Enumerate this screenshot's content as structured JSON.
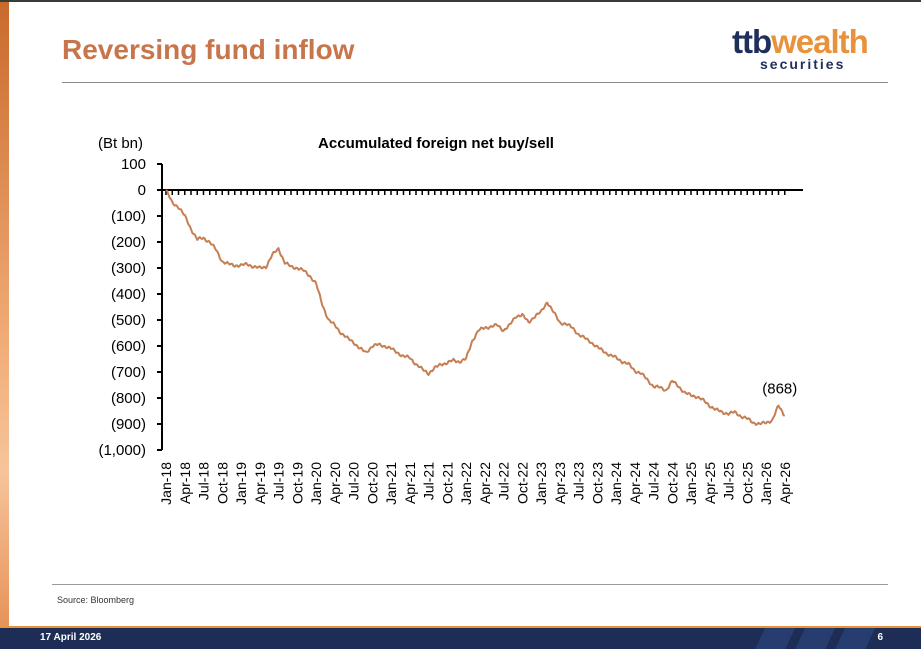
{
  "slide": {
    "title": "Reversing fund inflow",
    "source": "Source: Bloomberg",
    "date": "17 April 2026",
    "page": "6"
  },
  "logo": {
    "ttb": "ttb",
    "wealth": "wealth",
    "sub": "securities"
  },
  "colors": {
    "title": "#c7764c",
    "line": "#c67e53",
    "navy": "#1f2f5c",
    "orange": "#e8923c"
  },
  "chart_data": {
    "type": "line",
    "title": "Accumulated foreign net buy/sell",
    "ylabel": "(Bt bn)",
    "xlabel": "",
    "ylim": [
      -1000,
      100
    ],
    "yticks": [
      100,
      0,
      -100,
      -200,
      -300,
      -400,
      -500,
      -600,
      -700,
      -800,
      -900,
      -1000
    ],
    "ytick_labels": [
      "100",
      "0",
      "(100)",
      "(200)",
      "(300)",
      "(400)",
      "(500)",
      "(600)",
      "(700)",
      "(800)",
      "(900)",
      "(1,000)"
    ],
    "xtick_labels": [
      "Jan-18",
      "Apr-18",
      "Jul-18",
      "Oct-18",
      "Jan-19",
      "Apr-19",
      "Jul-19",
      "Oct-19",
      "Jan-20",
      "Apr-20",
      "Jul-20",
      "Oct-20",
      "Jan-21",
      "Apr-21",
      "Jul-21",
      "Oct-21",
      "Jan-22",
      "Apr-22",
      "Jul-22",
      "Oct-22",
      "Jan-23",
      "Apr-23",
      "Jul-23",
      "Oct-23",
      "Jan-24",
      "Apr-24",
      "Jul-24",
      "Oct-24",
      "Jan-25",
      "Apr-25",
      "Jul-25",
      "Oct-25",
      "Jan-26",
      "Apr-26"
    ],
    "grid": false,
    "annotation": {
      "x": "Apr-26",
      "y": -868,
      "label": "(868)"
    },
    "series": [
      {
        "x": [
          "Jan-18",
          "Feb-18",
          "Mar-18",
          "Apr-18",
          "May-18",
          "Jun-18",
          "Jul-18",
          "Aug-18",
          "Sep-18",
          "Oct-18",
          "Nov-18",
          "Dec-18",
          "Jan-19",
          "Feb-19",
          "Mar-19",
          "Apr-19",
          "May-19",
          "Jun-19",
          "Jul-19",
          "Aug-19",
          "Sep-19",
          "Oct-19",
          "Nov-19",
          "Dec-19",
          "Jan-20",
          "Feb-20",
          "Mar-20",
          "Apr-20",
          "May-20",
          "Jun-20",
          "Jul-20",
          "Aug-20",
          "Sep-20",
          "Oct-20",
          "Nov-20",
          "Dec-20",
          "Jan-21",
          "Feb-21",
          "Mar-21",
          "Apr-21",
          "May-21",
          "Jun-21",
          "Jul-21",
          "Aug-21",
          "Sep-21",
          "Oct-21",
          "Nov-21",
          "Dec-21",
          "Jan-22",
          "Feb-22",
          "Mar-22",
          "Apr-22",
          "May-22",
          "Jun-22",
          "Jul-22",
          "Aug-22",
          "Sep-22",
          "Oct-22",
          "Nov-22",
          "Dec-22",
          "Jan-23",
          "Feb-23",
          "Mar-23",
          "Apr-23",
          "May-23",
          "Jun-23",
          "Jul-23",
          "Aug-23",
          "Sep-23",
          "Oct-23",
          "Nov-23",
          "Dec-23",
          "Jan-24",
          "Feb-24",
          "Mar-24",
          "Apr-24",
          "May-24",
          "Jun-24",
          "Jul-24",
          "Aug-24",
          "Sep-24",
          "Oct-24",
          "Nov-24",
          "Dec-24",
          "Jan-25",
          "Feb-25",
          "Mar-25",
          "Apr-25",
          "May-25",
          "Jun-25",
          "Jul-25",
          "Aug-25",
          "Sep-25",
          "Oct-25",
          "Nov-25",
          "Dec-25",
          "Jan-26",
          "Feb-26",
          "Mar-26",
          "Apr-26"
        ],
        "values": [
          0,
          -50,
          -65,
          -100,
          -150,
          -190,
          -185,
          -200,
          -230,
          -275,
          -285,
          -290,
          -290,
          -285,
          -295,
          -300,
          -295,
          -250,
          -225,
          -280,
          -295,
          -300,
          -310,
          -330,
          -360,
          -440,
          -500,
          -520,
          -550,
          -570,
          -585,
          -610,
          -625,
          -600,
          -595,
          -600,
          -610,
          -625,
          -640,
          -645,
          -670,
          -690,
          -705,
          -685,
          -670,
          -665,
          -655,
          -660,
          -650,
          -580,
          -540,
          -530,
          -525,
          -520,
          -540,
          -520,
          -485,
          -480,
          -510,
          -485,
          -470,
          -430,
          -470,
          -510,
          -515,
          -530,
          -555,
          -570,
          -585,
          -605,
          -620,
          -635,
          -645,
          -660,
          -670,
          -695,
          -705,
          -730,
          -755,
          -760,
          -770,
          -735,
          -755,
          -780,
          -790,
          -795,
          -810,
          -830,
          -845,
          -855,
          -860,
          -855,
          -870,
          -880,
          -895,
          -900,
          -895,
          -885,
          -830,
          -868
        ]
      }
    ]
  }
}
